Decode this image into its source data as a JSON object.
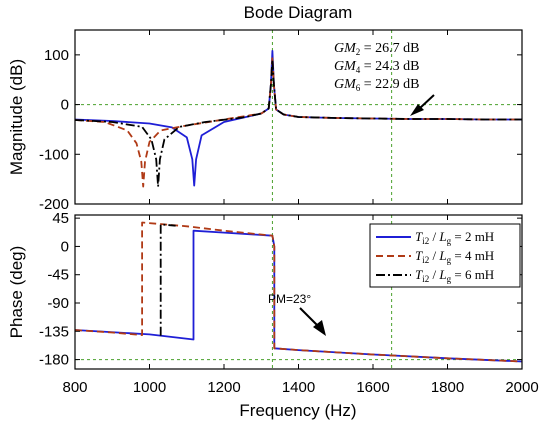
{
  "chart_data": {
    "title": "Bode Diagram",
    "xlabel": "Frequency  (Hz)",
    "xlim": [
      800,
      2000
    ],
    "xticks": [
      "800",
      "1000",
      "1200",
      "1400",
      "1600",
      "1800",
      "2000"
    ],
    "colors": {
      "2mH": "#1f1fd6",
      "4mH": "#b03a16",
      "6mH": "#000000",
      "guide": "#4aa02c"
    },
    "magnitude": {
      "type": "line",
      "ylabel": "Magnitude (dB)",
      "ylim": [
        -200,
        150
      ],
      "yticks": [
        "100",
        "0",
        "-100",
        "-200"
      ],
      "annotations": [
        {
          "prefix": "GM",
          "sub": "2",
          "value": " = 26.7 dB"
        },
        {
          "prefix": "GM",
          "sub": "4",
          "value": " = 24.3 dB"
        },
        {
          "prefix": "GM",
          "sub": "6",
          "value": " = 22.9 dB"
        }
      ],
      "series": [
        {
          "key": "2mH",
          "x": [
            800,
            900,
            1000,
            1060,
            1100,
            1115,
            1120,
            1125,
            1140,
            1200,
            1300,
            1320,
            1326,
            1330,
            1334,
            1340,
            1360,
            1400,
            1500,
            1600,
            1700,
            1800,
            1900,
            2000
          ],
          "y": [
            -30,
            -33,
            -38,
            -46,
            -66,
            -110,
            -163,
            -110,
            -62,
            -35,
            -18,
            -8,
            40,
            108,
            40,
            -10,
            -20,
            -25,
            -27,
            -28,
            -29,
            -29,
            -30,
            -30
          ]
        },
        {
          "key": "4mH",
          "x": [
            800,
            880,
            940,
            965,
            978,
            983,
            988,
            1000,
            1030,
            1100,
            1200,
            1300,
            1320,
            1326,
            1330,
            1334,
            1340,
            1360,
            1400,
            1500,
            1600,
            1700,
            1800,
            1900,
            2000
          ],
          "y": [
            -31,
            -35,
            -52,
            -78,
            -115,
            -165,
            -115,
            -75,
            -52,
            -42,
            -30,
            -18,
            -8,
            40,
            96,
            40,
            -10,
            -20,
            -25,
            -27,
            -28,
            -29,
            -29,
            -30,
            -30
          ]
        },
        {
          "key": "6mH",
          "x": [
            800,
            900,
            980,
            1005,
            1018,
            1023,
            1028,
            1040,
            1080,
            1150,
            1250,
            1300,
            1320,
            1326,
            1330,
            1334,
            1340,
            1360,
            1400,
            1500,
            1600,
            1700,
            1800,
            1900,
            2000
          ],
          "y": [
            -31,
            -35,
            -45,
            -70,
            -110,
            -165,
            -110,
            -70,
            -45,
            -35,
            -26,
            -18,
            -8,
            40,
            90,
            40,
            -10,
            -20,
            -25,
            -27,
            -28,
            -29,
            -29,
            -30,
            -30
          ]
        }
      ]
    },
    "phase": {
      "type": "line",
      "ylabel": "Phase (deg)",
      "ylim": [
        -195,
        50
      ],
      "yticks": [
        "45",
        "0",
        "-45",
        "-90",
        "-135",
        "-180"
      ],
      "annotation": "PM=23°",
      "legend": {
        "position": "right",
        "entries": [
          {
            "key": "2mH",
            "prefix": "T",
            "sub": "i2",
            "mid": " / ",
            "var": "L",
            "varsub": "g",
            "suffix": " = 2 mH"
          },
          {
            "key": "4mH",
            "prefix": "T",
            "sub": "i2",
            "mid": " / ",
            "var": "L",
            "varsub": "g",
            "suffix": " = 4 mH"
          },
          {
            "key": "6mH",
            "prefix": "T",
            "sub": "i2",
            "mid": " / ",
            "var": "L",
            "varsub": "g",
            "suffix": " = 6 mH"
          }
        ]
      },
      "series": [
        {
          "key": "2mH",
          "x": [
            800,
            1000,
            1118,
            1118,
            1200,
            1330,
            1335,
            1335,
            1400,
            1600,
            1800,
            2000
          ],
          "y": [
            -133,
            -140,
            -148,
            25,
            22,
            17,
            0,
            -162,
            -165,
            -172,
            -178,
            -183
          ]
        },
        {
          "key": "4mH",
          "x": [
            800,
            900,
            980,
            980,
            1100,
            1200,
            1330,
            1335,
            1335,
            1400,
            1600,
            1800,
            2000
          ],
          "y": [
            -133,
            -137,
            -141,
            38,
            32,
            25,
            17,
            0,
            -162,
            -165,
            -172,
            -178,
            -183
          ]
        },
        {
          "key": "6mH",
          "x": [
            1030,
            1030,
            1070
          ],
          "y": [
            -142,
            35,
            33
          ]
        }
      ]
    }
  }
}
